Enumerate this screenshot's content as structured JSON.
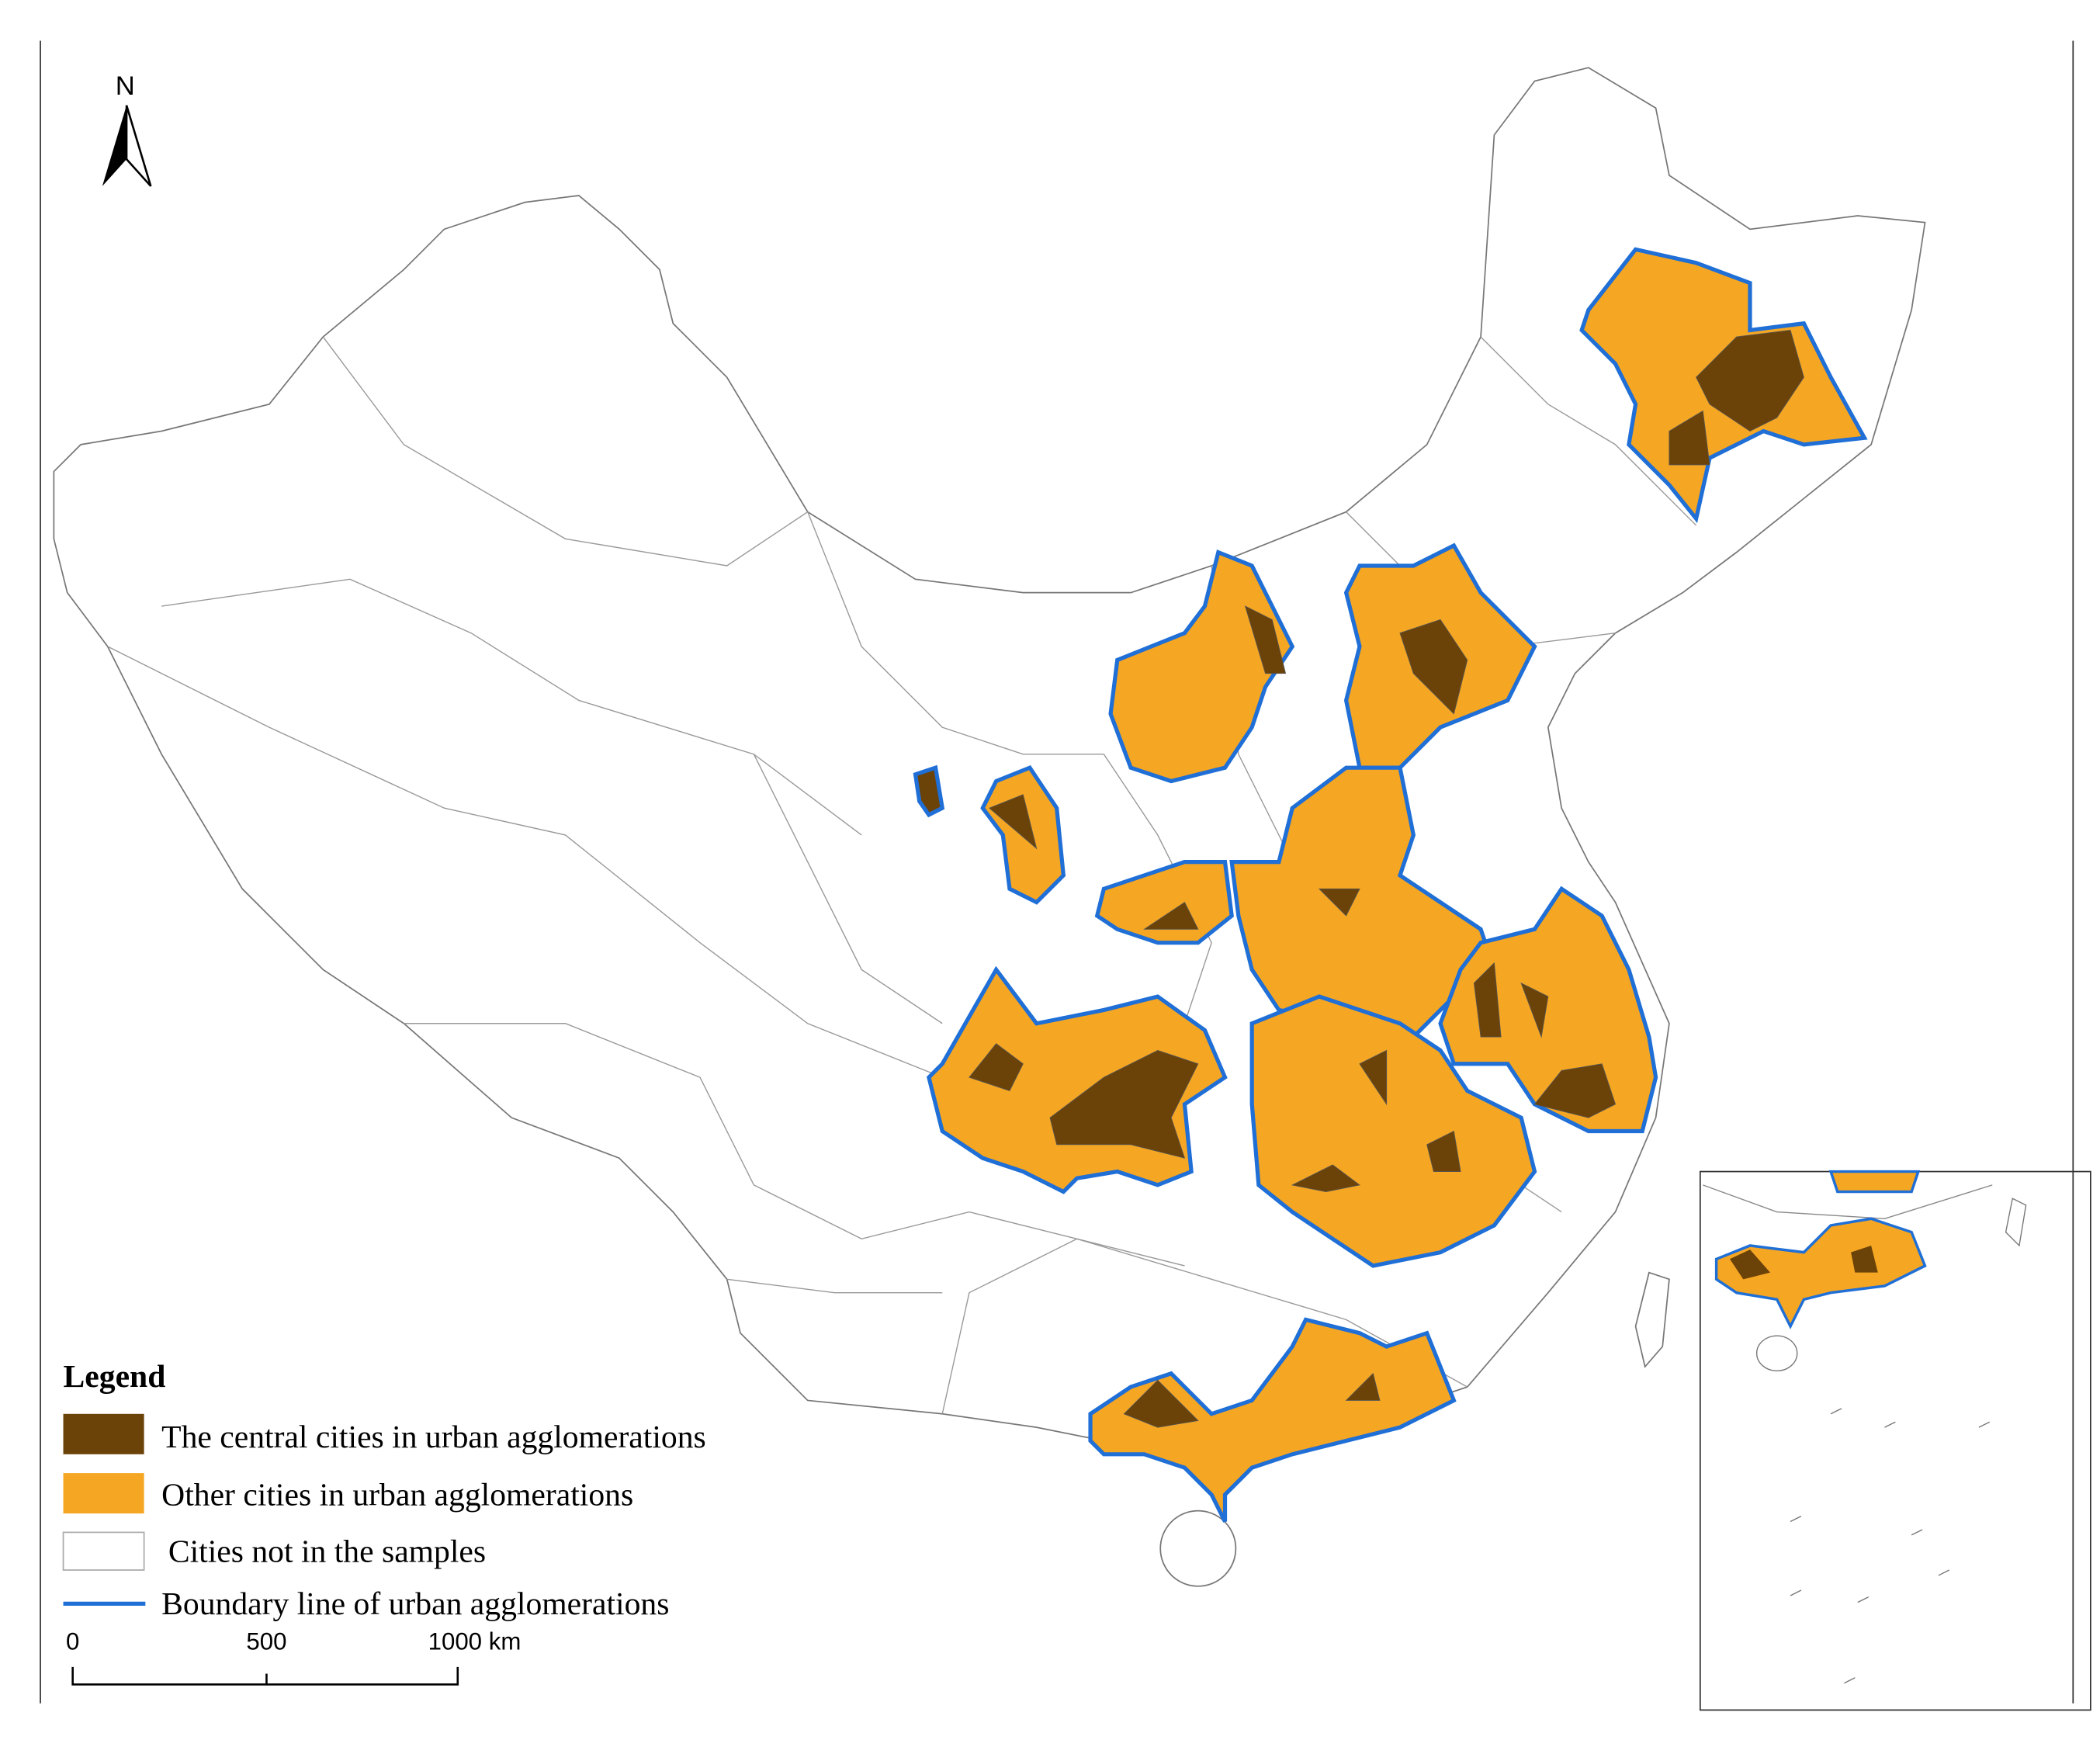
{
  "north_label": "N",
  "legend": {
    "title": "Legend",
    "items": [
      "The central cities in urban agglomerations",
      "Other cities in urban agglomerations",
      "Cities not in the samples",
      "Boundary line of urban agglomerations"
    ]
  },
  "scale_bar": {
    "labels": [
      "0",
      "500",
      "1000 km"
    ]
  }
}
